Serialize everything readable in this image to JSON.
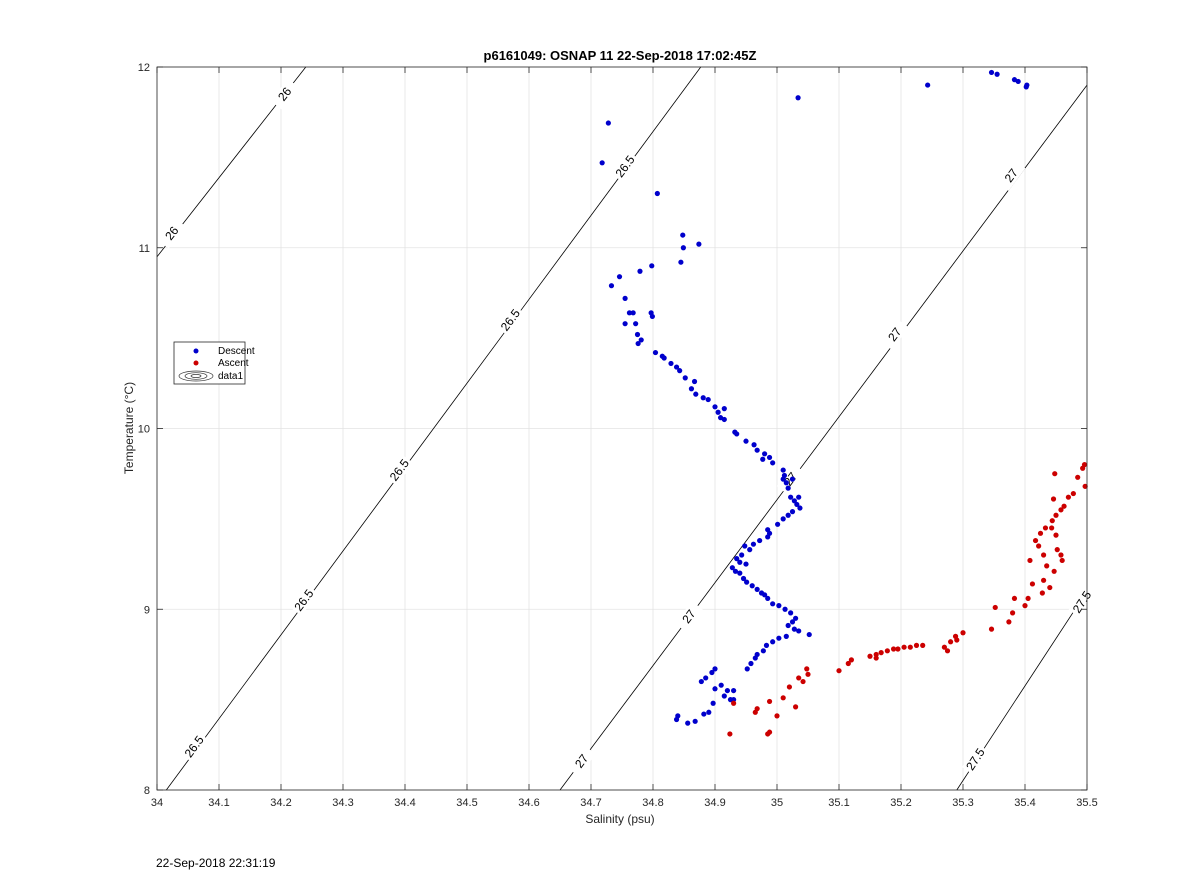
{
  "chart_data": {
    "type": "scatter",
    "title": "p6161049: OSNAP 11 22-Sep-2018 17:02:45Z",
    "xlabel": "Salinity (psu)",
    "ylabel": "Temperature (°C)",
    "xlim": [
      34,
      35.5
    ],
    "ylim": [
      8,
      12
    ],
    "xticks": [
      34,
      34.1,
      34.2,
      34.3,
      34.4,
      34.5,
      34.6,
      34.7,
      34.8,
      34.9,
      35,
      35.1,
      35.2,
      35.3,
      35.4,
      35.5
    ],
    "xtick_labels": [
      "34",
      "34.1",
      "34.2",
      "34.3",
      "34.4",
      "34.5",
      "34.6",
      "34.7",
      "34.8",
      "34.9",
      "35",
      "35.1",
      "35.2",
      "35.3",
      "35.4",
      "35.5"
    ],
    "yticks": [
      8,
      9,
      10,
      11,
      12
    ],
    "ytick_labels": [
      "8",
      "9",
      "10",
      "11",
      "12"
    ],
    "grid": true,
    "legend": {
      "placement": "left",
      "entries": [
        "Descent",
        "Ascent",
        "data1"
      ]
    },
    "contours": [
      {
        "level": "26",
        "line": [
          [
            34.0,
            10.95
          ],
          [
            34.24,
            12.0
          ]
        ],
        "labels": [
          [
            34.024,
            11.08
          ],
          [
            34.206,
            11.85
          ]
        ]
      },
      {
        "level": "26.5",
        "line": [
          [
            34.015,
            8.0
          ],
          [
            34.877,
            12.0
          ]
        ],
        "labels": [
          [
            34.06,
            8.24
          ],
          [
            34.237,
            9.05
          ],
          [
            34.391,
            9.77
          ],
          [
            34.57,
            10.6
          ],
          [
            34.755,
            11.45
          ]
        ]
      },
      {
        "level": "27",
        "line": [
          [
            34.65,
            8.0
          ],
          [
            35.5,
            11.9
          ]
        ],
        "labels": [
          [
            34.685,
            8.16
          ],
          [
            34.858,
            8.96
          ],
          [
            35.022,
            9.72
          ],
          [
            35.19,
            10.52
          ],
          [
            35.378,
            11.4
          ]
        ]
      },
      {
        "level": "27.5",
        "line": [
          [
            35.29,
            8.0
          ],
          [
            35.5,
            9.1
          ]
        ],
        "labels": [
          [
            35.32,
            8.17
          ],
          [
            35.492,
            9.04
          ]
        ]
      }
    ],
    "series": [
      {
        "name": "Descent",
        "color": "#0000cc",
        "points": [
          [
            34.728,
            11.69
          ],
          [
            34.718,
            11.47
          ],
          [
            35.034,
            11.83
          ],
          [
            35.243,
            11.9
          ],
          [
            35.346,
            11.97
          ],
          [
            35.355,
            11.96
          ],
          [
            35.383,
            11.93
          ],
          [
            35.389,
            11.92
          ],
          [
            35.402,
            11.89
          ],
          [
            35.403,
            11.9
          ],
          [
            34.807,
            11.3
          ],
          [
            34.874,
            11.02
          ],
          [
            34.848,
            11.07
          ],
          [
            34.849,
            11.0
          ],
          [
            34.845,
            10.92
          ],
          [
            34.779,
            10.87
          ],
          [
            34.746,
            10.84
          ],
          [
            34.798,
            10.9
          ],
          [
            34.733,
            10.79
          ],
          [
            34.755,
            10.72
          ],
          [
            34.762,
            10.64
          ],
          [
            34.768,
            10.64
          ],
          [
            34.797,
            10.64
          ],
          [
            34.799,
            10.62
          ],
          [
            34.755,
            10.58
          ],
          [
            34.772,
            10.58
          ],
          [
            34.775,
            10.52
          ],
          [
            34.781,
            10.49
          ],
          [
            34.776,
            10.47
          ],
          [
            34.804,
            10.42
          ],
          [
            34.815,
            10.4
          ],
          [
            34.818,
            10.39
          ],
          [
            34.829,
            10.36
          ],
          [
            34.838,
            10.34
          ],
          [
            34.843,
            10.32
          ],
          [
            34.852,
            10.28
          ],
          [
            34.867,
            10.26
          ],
          [
            34.862,
            10.22
          ],
          [
            34.869,
            10.19
          ],
          [
            34.881,
            10.17
          ],
          [
            34.889,
            10.16
          ],
          [
            34.9,
            10.12
          ],
          [
            34.915,
            10.11
          ],
          [
            34.905,
            10.09
          ],
          [
            34.909,
            10.06
          ],
          [
            34.915,
            10.05
          ],
          [
            34.932,
            9.98
          ],
          [
            34.935,
            9.97
          ],
          [
            34.95,
            9.93
          ],
          [
            34.963,
            9.91
          ],
          [
            34.968,
            9.88
          ],
          [
            34.98,
            9.86
          ],
          [
            34.988,
            9.84
          ],
          [
            34.977,
            9.83
          ],
          [
            34.993,
            9.81
          ],
          [
            35.01,
            9.77
          ],
          [
            35.01,
            9.72
          ],
          [
            35.012,
            9.74
          ],
          [
            35.025,
            9.72
          ],
          [
            35.015,
            9.7
          ],
          [
            35.018,
            9.67
          ],
          [
            35.022,
            9.62
          ],
          [
            35.035,
            9.62
          ],
          [
            35.028,
            9.6
          ],
          [
            35.032,
            9.58
          ],
          [
            35.037,
            9.56
          ],
          [
            35.025,
            9.54
          ],
          [
            35.018,
            9.52
          ],
          [
            35.01,
            9.5
          ],
          [
            35.001,
            9.47
          ],
          [
            34.985,
            9.44
          ],
          [
            34.988,
            9.42
          ],
          [
            34.985,
            9.4
          ],
          [
            34.972,
            9.38
          ],
          [
            34.962,
            9.36
          ],
          [
            34.948,
            9.35
          ],
          [
            34.956,
            9.33
          ],
          [
            34.943,
            9.3
          ],
          [
            34.935,
            9.28
          ],
          [
            34.94,
            9.26
          ],
          [
            34.95,
            9.25
          ],
          [
            34.928,
            9.23
          ],
          [
            34.933,
            9.21
          ],
          [
            34.94,
            9.2
          ],
          [
            34.946,
            9.17
          ],
          [
            34.951,
            9.15
          ],
          [
            34.96,
            9.13
          ],
          [
            34.968,
            9.11
          ],
          [
            34.975,
            9.09
          ],
          [
            34.98,
            9.08
          ],
          [
            34.985,
            9.06
          ],
          [
            34.993,
            9.03
          ],
          [
            35.003,
            9.02
          ],
          [
            35.013,
            9.0
          ],
          [
            35.022,
            8.98
          ],
          [
            35.03,
            8.95
          ],
          [
            35.025,
            8.93
          ],
          [
            35.018,
            8.91
          ],
          [
            35.028,
            8.89
          ],
          [
            35.035,
            8.88
          ],
          [
            35.052,
            8.86
          ],
          [
            35.015,
            8.85
          ],
          [
            35.003,
            8.84
          ],
          [
            34.993,
            8.82
          ],
          [
            34.983,
            8.8
          ],
          [
            34.978,
            8.77
          ],
          [
            34.968,
            8.75
          ],
          [
            34.965,
            8.73
          ],
          [
            34.958,
            8.7
          ],
          [
            34.952,
            8.67
          ],
          [
            34.9,
            8.67
          ],
          [
            34.895,
            8.65
          ],
          [
            34.885,
            8.62
          ],
          [
            34.878,
            8.6
          ],
          [
            34.91,
            8.58
          ],
          [
            34.9,
            8.56
          ],
          [
            34.92,
            8.55
          ],
          [
            34.93,
            8.55
          ],
          [
            34.915,
            8.52
          ],
          [
            34.925,
            8.5
          ],
          [
            34.93,
            8.5
          ],
          [
            34.897,
            8.48
          ],
          [
            34.89,
            8.43
          ],
          [
            34.882,
            8.42
          ],
          [
            34.84,
            8.41
          ],
          [
            34.838,
            8.39
          ],
          [
            34.856,
            8.37
          ],
          [
            34.868,
            8.38
          ]
        ]
      },
      {
        "name": "Ascent",
        "color": "#cc0000",
        "points": [
          [
            35.496,
            9.8
          ],
          [
            35.493,
            9.78
          ],
          [
            35.448,
            9.75
          ],
          [
            35.485,
            9.73
          ],
          [
            35.497,
            9.68
          ],
          [
            35.478,
            9.64
          ],
          [
            35.47,
            9.62
          ],
          [
            35.446,
            9.61
          ],
          [
            35.463,
            9.57
          ],
          [
            35.458,
            9.55
          ],
          [
            35.45,
            9.52
          ],
          [
            35.444,
            9.49
          ],
          [
            35.443,
            9.45
          ],
          [
            35.433,
            9.45
          ],
          [
            35.425,
            9.42
          ],
          [
            35.45,
            9.41
          ],
          [
            35.417,
            9.38
          ],
          [
            35.422,
            9.35
          ],
          [
            35.452,
            9.33
          ],
          [
            35.458,
            9.3
          ],
          [
            35.43,
            9.3
          ],
          [
            35.46,
            9.27
          ],
          [
            35.408,
            9.27
          ],
          [
            35.435,
            9.24
          ],
          [
            35.447,
            9.21
          ],
          [
            35.43,
            9.16
          ],
          [
            35.412,
            9.14
          ],
          [
            35.44,
            9.12
          ],
          [
            35.428,
            9.09
          ],
          [
            35.405,
            9.06
          ],
          [
            35.383,
            9.06
          ],
          [
            35.4,
            9.02
          ],
          [
            35.352,
            9.01
          ],
          [
            35.38,
            8.98
          ],
          [
            35.374,
            8.93
          ],
          [
            35.346,
            8.89
          ],
          [
            35.3,
            8.87
          ],
          [
            35.288,
            8.85
          ],
          [
            35.28,
            8.82
          ],
          [
            35.29,
            8.83
          ],
          [
            35.27,
            8.79
          ],
          [
            35.275,
            8.77
          ],
          [
            35.235,
            8.8
          ],
          [
            35.225,
            8.8
          ],
          [
            35.215,
            8.79
          ],
          [
            35.205,
            8.79
          ],
          [
            35.195,
            8.78
          ],
          [
            35.188,
            8.78
          ],
          [
            35.178,
            8.77
          ],
          [
            35.168,
            8.76
          ],
          [
            35.16,
            8.75
          ],
          [
            35.15,
            8.74
          ],
          [
            35.16,
            8.73
          ],
          [
            35.12,
            8.72
          ],
          [
            35.115,
            8.7
          ],
          [
            35.1,
            8.66
          ],
          [
            35.048,
            8.67
          ],
          [
            35.05,
            8.64
          ],
          [
            35.035,
            8.62
          ],
          [
            35.042,
            8.6
          ],
          [
            35.02,
            8.57
          ],
          [
            35.01,
            8.51
          ],
          [
            35.03,
            8.46
          ],
          [
            34.988,
            8.49
          ],
          [
            35.0,
            8.41
          ],
          [
            34.968,
            8.45
          ],
          [
            34.965,
            8.43
          ],
          [
            34.988,
            8.32
          ],
          [
            34.985,
            8.31
          ],
          [
            34.924,
            8.31
          ],
          [
            34.93,
            8.48
          ]
        ]
      },
      {
        "name": "data1",
        "points": []
      }
    ]
  },
  "timestamp": "22-Sep-2018 22:31:19"
}
